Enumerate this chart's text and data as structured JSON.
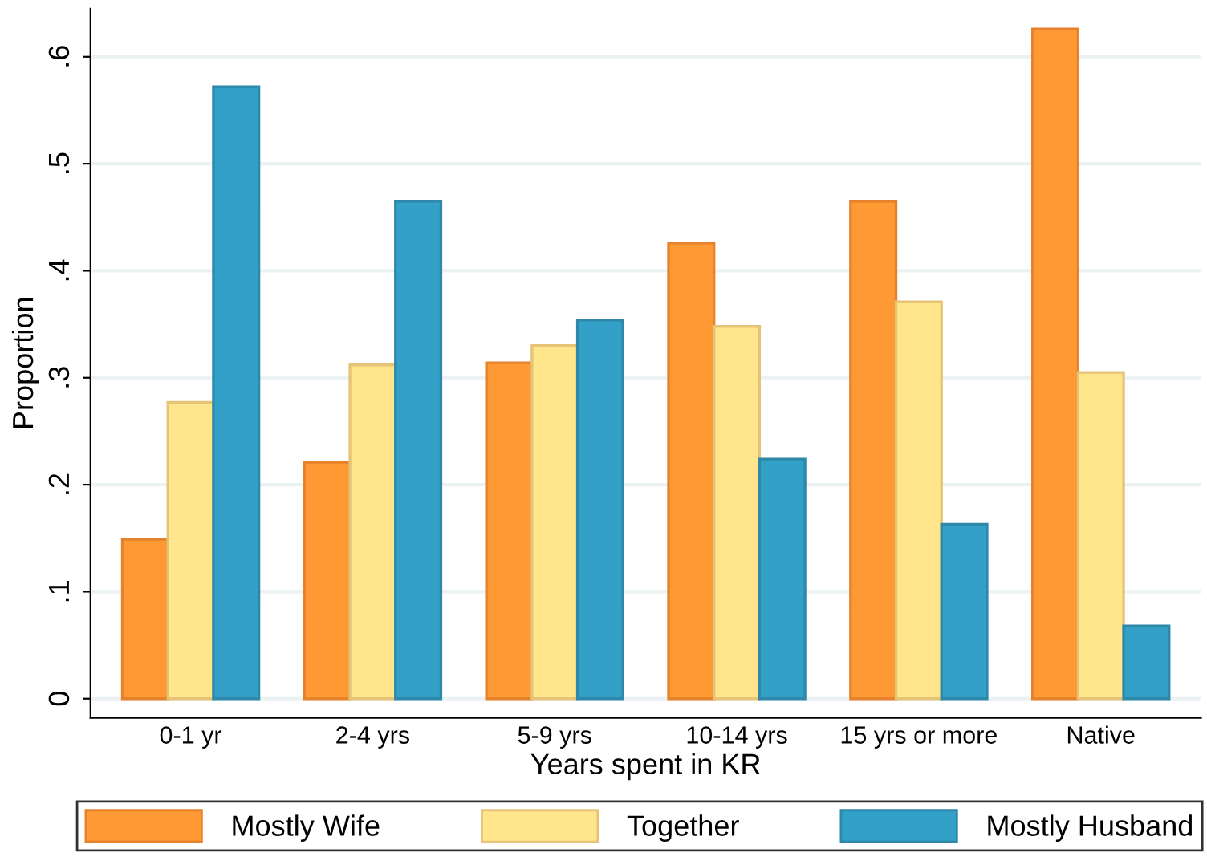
{
  "chart_data": {
    "type": "bar",
    "xlabel": "Years spent in KR",
    "ylabel": "Proportion",
    "categories": [
      "0-1 yr",
      "2-4 yrs",
      "5-9 yrs",
      "10-14 yrs",
      "15 yrs or more",
      "Native"
    ],
    "series": [
      {
        "name": "Mostly Wife",
        "color": "#ff9933",
        "values": [
          0.149,
          0.221,
          0.314,
          0.426,
          0.465,
          0.626
        ]
      },
      {
        "name": "Together",
        "color": "#ffe68c",
        "values": [
          0.277,
          0.312,
          0.33,
          0.348,
          0.371,
          0.305
        ]
      },
      {
        "name": "Mostly Husband",
        "color": "#33a0c8",
        "values": [
          0.572,
          0.465,
          0.354,
          0.224,
          0.163,
          0.068
        ]
      }
    ],
    "ylim": [
      -0.018,
      0.645
    ],
    "yticks": [
      {
        "value": 0,
        "label": "0"
      },
      {
        "value": 0.1,
        "label": ".1"
      },
      {
        "value": 0.2,
        "label": ".2"
      },
      {
        "value": 0.3,
        "label": ".3"
      },
      {
        "value": 0.4,
        "label": ".4"
      },
      {
        "value": 0.5,
        "label": ".5"
      },
      {
        "value": 0.6,
        "label": ".6"
      }
    ],
    "grid": "y",
    "legend": "bottom"
  }
}
